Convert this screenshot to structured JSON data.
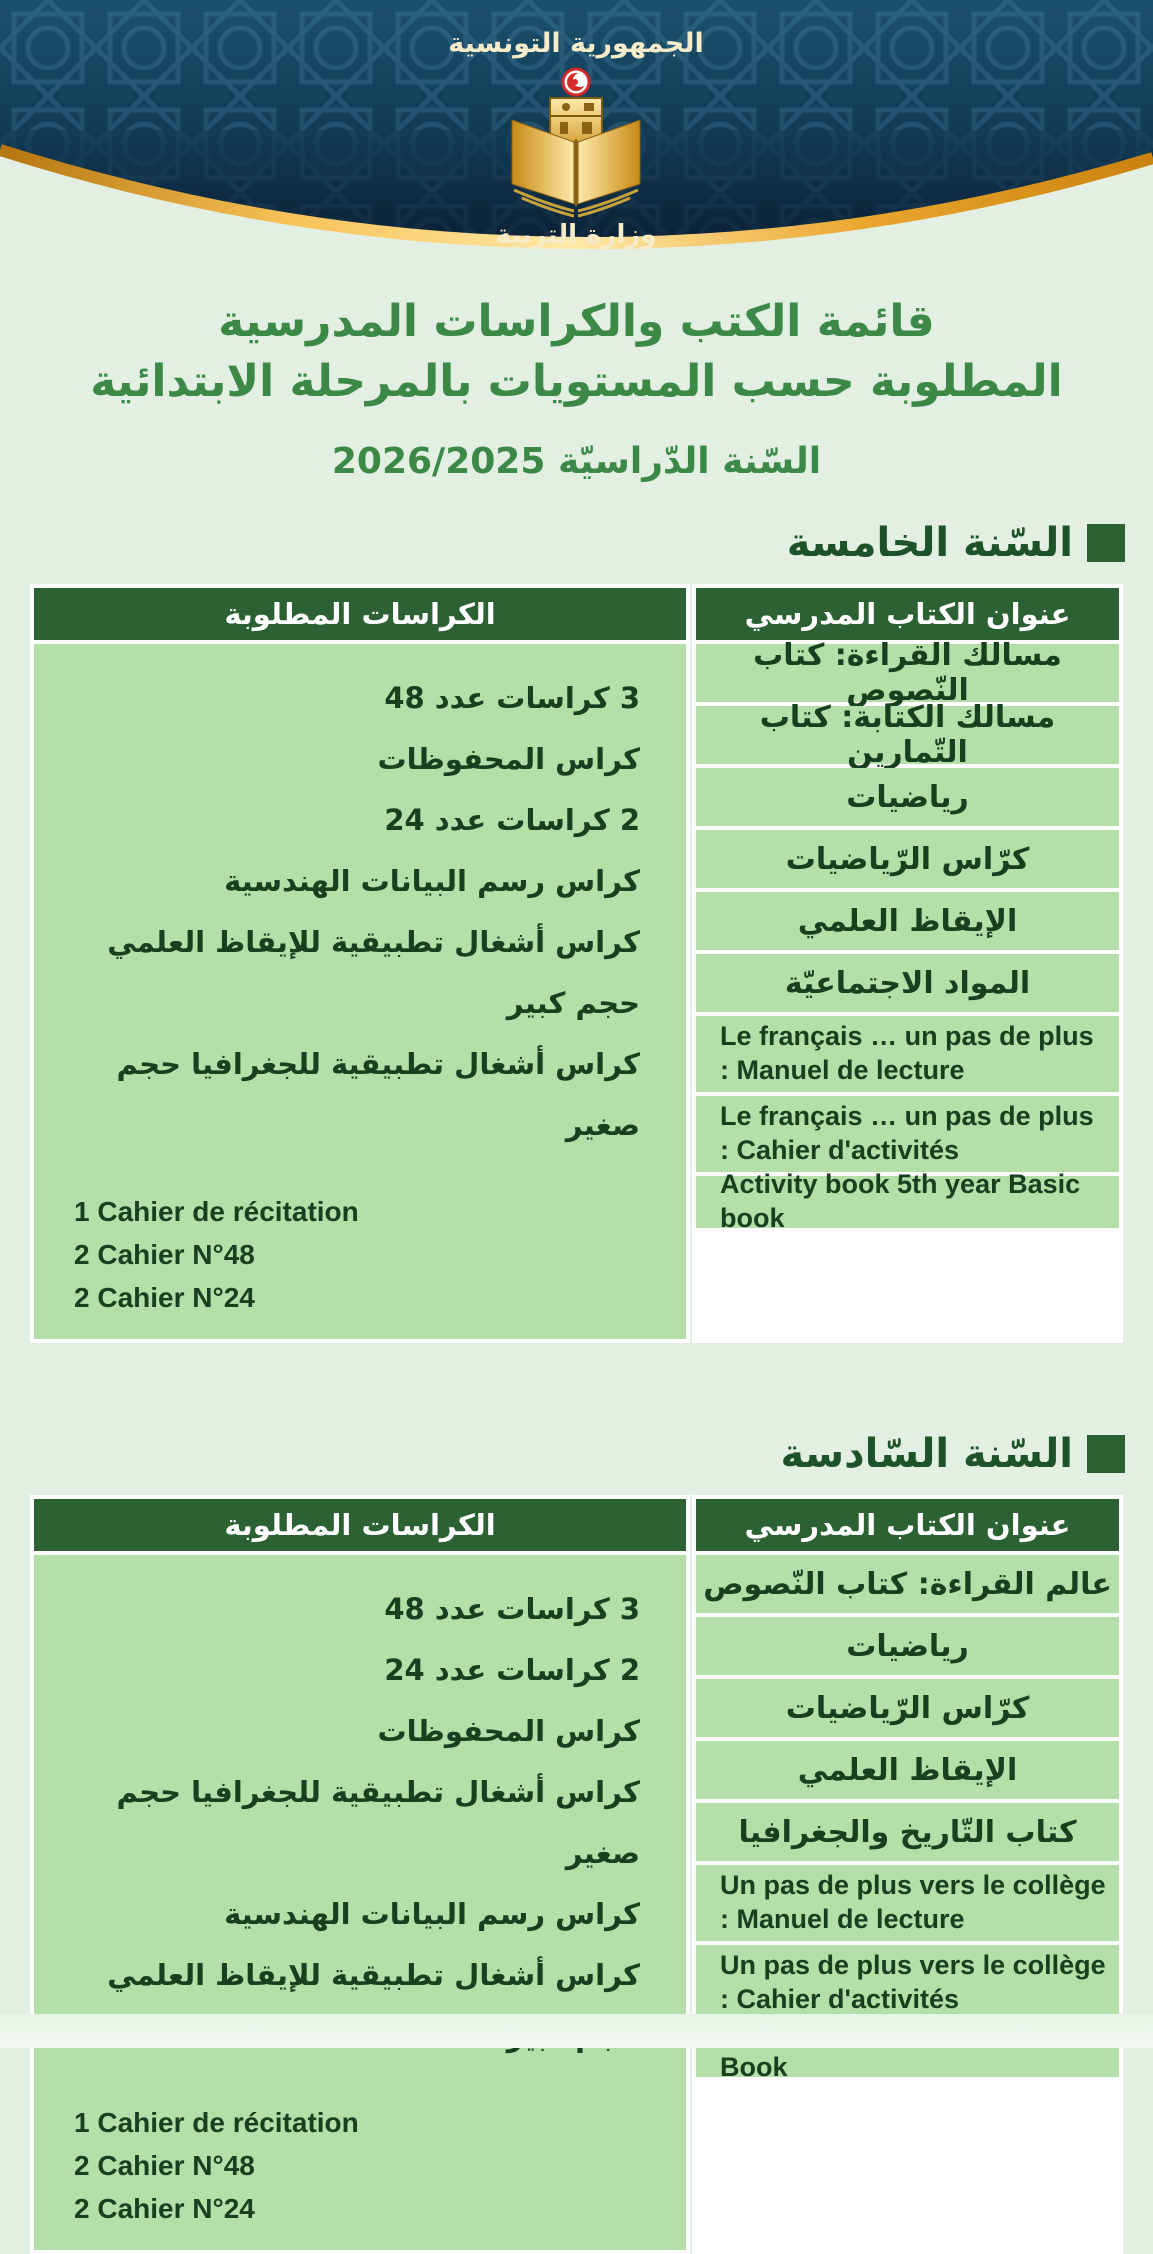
{
  "header": {
    "republic": "الجمهورية التونسية",
    "ministry": "وزارة التربية"
  },
  "title": {
    "line1": "قائمة الكتب والكراسات المدرسية",
    "line2": "المطلوبة حسب المستويات بالمرحلة الابتدائية",
    "line3": "السّنة الدّراسيّة 2026/2025"
  },
  "table_headers": {
    "books": "عنوان الكتاب المدرسي",
    "notebooks": "الكراسات المطلوبة"
  },
  "colors": {
    "page_bg": "#e2efe2",
    "header_navy_top": "#1b516d",
    "header_navy_bottom": "#0b2135",
    "gold": "#eaa62e",
    "title_green": "#3b8847",
    "section_green": "#1e5228",
    "bar_green": "#2c6233",
    "cell_green": "#b4dfa9",
    "cell_text": "#17401f"
  },
  "sections": [
    {
      "title": "السّنة الخامسة",
      "books": [
        {
          "text": "مسالك القراءة: كتاب النّصوص",
          "lang": "ar"
        },
        {
          "text": "مسالك الكتابة: كتاب التّمارين",
          "lang": "ar"
        },
        {
          "text": "رياضيات",
          "lang": "ar"
        },
        {
          "text": "كرّاس الرّياضيات",
          "lang": "ar"
        },
        {
          "text": "الإيقاظ العلمي",
          "lang": "ar"
        },
        {
          "text": "المواد الاجتماعيّة",
          "lang": "ar"
        },
        {
          "text": "Le français … un pas de plus : Manuel de lecture",
          "lang": "fr"
        },
        {
          "text": "Le français … un pas de plus : Cahier d'activités",
          "lang": "fr"
        },
        {
          "text": "Activity book 5th year Basic book",
          "lang": "en"
        }
      ],
      "notebooks_ar": [
        "3 كراسات عدد 48",
        "كراس المحفوظات",
        "2 كراسات عدد 24",
        "كراس رسم البيانات الهندسية",
        "كراس أشغال تطبيقية للإيقاظ العلمي حجم كبير",
        "كراس أشغال تطبيقية للجغرافيا حجم صغير"
      ],
      "notebooks_fr": [
        "1 Cahier de récitation",
        "2 Cahier N°48",
        "2 Cahier N°24"
      ]
    },
    {
      "title": "السّنة السّادسة",
      "books": [
        {
          "text": "عالم القراءة: كتاب النّصوص",
          "lang": "ar"
        },
        {
          "text": "رياضيات",
          "lang": "ar"
        },
        {
          "text": "كرّاس الرّياضيات",
          "lang": "ar"
        },
        {
          "text": "الإيقاظ العلمي",
          "lang": "ar"
        },
        {
          "text": "كتاب التّاريخ والجغرافيا",
          "lang": "ar"
        },
        {
          "text": "Un pas de plus vers le collège : Manuel de lecture",
          "lang": "fr"
        },
        {
          "text": "Un pas de plus vers le collège : Cahier d'activités",
          "lang": "fr"
        },
        {
          "text": "Learn and Grow : Student's Book",
          "lang": "en"
        }
      ],
      "notebooks_ar": [
        "3 كراسات عدد 48",
        "2 كراسات عدد 24",
        "كراس المحفوظات",
        "كراس أشغال تطبيقية للجغرافيا حجم صغير",
        "كراس رسم البيانات الهندسية",
        "كراس أشغال تطبيقية للإيقاظ العلمي حجم كبير"
      ],
      "notebooks_fr": [
        "1 Cahier de récitation",
        "2 Cahier N°48",
        "2 Cahier N°24"
      ]
    }
  ]
}
